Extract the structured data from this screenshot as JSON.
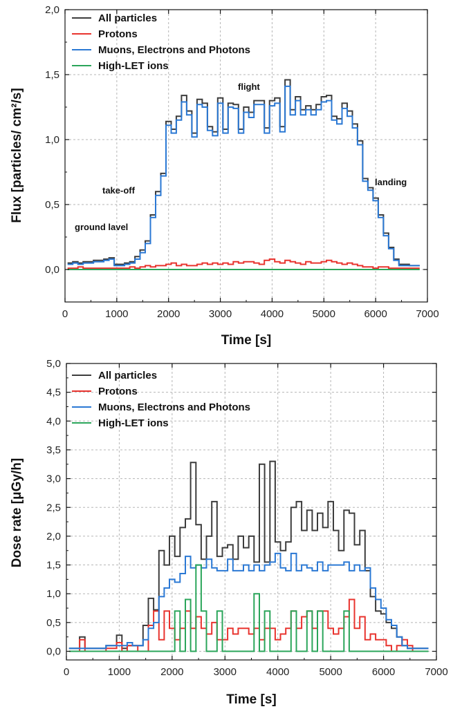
{
  "colors": {
    "all": "#3c3c3c",
    "protons": "#e8332e",
    "muons": "#2a78d4",
    "highlet": "#2aa55a",
    "grid": "#b5b5b5"
  },
  "chart_data": [
    {
      "type": "line",
      "xlabel": "Time [s]",
      "ylabel": "Flux [particles/ cm²/s]",
      "xlim": [
        0,
        7000
      ],
      "ylim": [
        -0.25,
        2.0
      ],
      "xticks": [
        "0",
        "1000",
        "2000",
        "3000",
        "4000",
        "5000",
        "6000",
        "7000"
      ],
      "yticks": [
        "0,0",
        "0,5",
        "1,0",
        "1,5",
        "2,0"
      ],
      "grid": true,
      "legend_position": "top-left",
      "annotations": [
        "ground lavel",
        "take-off",
        "flight",
        "landing"
      ],
      "x": [
        100,
        200,
        300,
        400,
        500,
        600,
        700,
        800,
        900,
        1000,
        1100,
        1200,
        1300,
        1400,
        1500,
        1600,
        1700,
        1800,
        1900,
        2000,
        2100,
        2200,
        2300,
        2400,
        2500,
        2600,
        2700,
        2800,
        2900,
        3000,
        3100,
        3200,
        3300,
        3400,
        3500,
        3600,
        3700,
        3800,
        3900,
        4000,
        4100,
        4200,
        4300,
        4400,
        4500,
        4600,
        4700,
        4800,
        4900,
        5000,
        5100,
        5200,
        5300,
        5400,
        5500,
        5600,
        5700,
        5800,
        5900,
        6000,
        6100,
        6200,
        6300,
        6400,
        6500,
        6600,
        6700,
        6800
      ],
      "series": [
        {
          "name": "All particles",
          "values": [
            0.05,
            0.06,
            0.05,
            0.06,
            0.06,
            0.07,
            0.07,
            0.08,
            0.09,
            0.04,
            0.04,
            0.05,
            0.06,
            0.1,
            0.15,
            0.22,
            0.42,
            0.6,
            0.74,
            1.14,
            1.08,
            1.18,
            1.34,
            1.22,
            1.05,
            1.31,
            1.28,
            1.1,
            1.06,
            1.32,
            1.08,
            1.28,
            1.27,
            1.08,
            1.25,
            1.21,
            1.3,
            1.3,
            1.09,
            1.3,
            1.32,
            1.1,
            1.46,
            1.23,
            1.33,
            1.23,
            1.26,
            1.23,
            1.27,
            1.33,
            1.34,
            1.18,
            1.16,
            1.28,
            1.22,
            1.12,
            0.99,
            0.7,
            0.63,
            0.55,
            0.42,
            0.28,
            0.17,
            0.08,
            0.04,
            0.04,
            0.03,
            0.03
          ]
        },
        {
          "name": "Protons",
          "values": [
            0.01,
            0.01,
            0.02,
            0.01,
            0.01,
            0.01,
            0.01,
            0.01,
            0.01,
            0.01,
            0.01,
            0.01,
            0.02,
            0.01,
            0.02,
            0.03,
            0.02,
            0.03,
            0.03,
            0.04,
            0.05,
            0.03,
            0.04,
            0.03,
            0.03,
            0.04,
            0.05,
            0.04,
            0.05,
            0.04,
            0.05,
            0.04,
            0.06,
            0.05,
            0.06,
            0.06,
            0.05,
            0.04,
            0.07,
            0.08,
            0.06,
            0.05,
            0.07,
            0.06,
            0.05,
            0.04,
            0.06,
            0.05,
            0.05,
            0.06,
            0.07,
            0.06,
            0.05,
            0.04,
            0.05,
            0.04,
            0.03,
            0.02,
            0.02,
            0.01,
            0.02,
            0.02,
            0.01,
            0.01,
            0.01,
            0.01,
            0.01,
            0.01
          ]
        },
        {
          "name": "Muons, Electrons and Photons",
          "values": [
            0.04,
            0.05,
            0.04,
            0.05,
            0.05,
            0.06,
            0.06,
            0.07,
            0.08,
            0.03,
            0.03,
            0.04,
            0.05,
            0.08,
            0.13,
            0.2,
            0.4,
            0.57,
            0.72,
            1.11,
            1.05,
            1.15,
            1.29,
            1.19,
            1.02,
            1.27,
            1.25,
            1.07,
            1.03,
            1.28,
            1.05,
            1.25,
            1.24,
            1.05,
            1.21,
            1.17,
            1.27,
            1.27,
            1.05,
            1.26,
            1.28,
            1.06,
            1.41,
            1.19,
            1.3,
            1.19,
            1.23,
            1.19,
            1.23,
            1.29,
            1.3,
            1.15,
            1.12,
            1.24,
            1.18,
            1.09,
            0.96,
            0.68,
            0.61,
            0.53,
            0.4,
            0.26,
            0.16,
            0.07,
            0.03,
            0.03,
            0.03,
            0.03
          ]
        },
        {
          "name": "High-LET ions",
          "values": [
            0.0,
            0.0,
            0.0,
            0.0,
            0.0,
            0.0,
            0.0,
            0.0,
            0.0,
            0.0,
            0.0,
            0.0,
            0.0,
            0.0,
            0.0,
            0.0,
            0.0,
            0.0,
            0.0,
            0.0,
            0.0,
            0.0,
            0.0,
            0.0,
            0.0,
            0.0,
            0.0,
            0.0,
            0.0,
            0.0,
            0.0,
            0.0,
            0.0,
            0.0,
            0.0,
            0.0,
            0.0,
            0.0,
            0.0,
            0.0,
            0.0,
            0.0,
            0.0,
            0.0,
            0.0,
            0.0,
            0.0,
            0.0,
            0.0,
            0.0,
            0.0,
            0.0,
            0.0,
            0.0,
            0.0,
            0.0,
            0.0,
            0.0,
            0.0,
            0.0,
            0.0,
            0.0,
            0.0,
            0.0,
            0.0,
            0.0,
            0.0,
            0.0
          ]
        }
      ]
    },
    {
      "type": "line",
      "xlabel": "Time [s]",
      "ylabel": "Dose rate [μGy/h]",
      "xlim": [
        0,
        7000
      ],
      "ylim": [
        -0.15,
        5.0
      ],
      "xticks": [
        "0",
        "1000",
        "2000",
        "3000",
        "4000",
        "5000",
        "6000",
        "7000"
      ],
      "yticks": [
        "0,0",
        "0,5",
        "1,0",
        "1,5",
        "2,0",
        "2,5",
        "3,0",
        "3,5",
        "4,0",
        "4,5",
        "5,0"
      ],
      "grid": true,
      "legend_position": "top-left",
      "x": [
        100,
        200,
        300,
        400,
        500,
        600,
        700,
        800,
        900,
        1000,
        1100,
        1200,
        1300,
        1400,
        1500,
        1600,
        1700,
        1800,
        1900,
        2000,
        2100,
        2200,
        2300,
        2400,
        2500,
        2600,
        2700,
        2800,
        2900,
        3000,
        3100,
        3200,
        3300,
        3400,
        3500,
        3600,
        3700,
        3800,
        3900,
        4000,
        4100,
        4200,
        4300,
        4400,
        4500,
        4600,
        4700,
        4800,
        4900,
        5000,
        5100,
        5200,
        5300,
        5400,
        5500,
        5600,
        5700,
        5800,
        5900,
        6000,
        6100,
        6200,
        6300,
        6400,
        6500,
        6600,
        6700,
        6800
      ],
      "series": [
        {
          "name": "All particles",
          "values": [
            0.05,
            0.05,
            0.25,
            0.05,
            0.05,
            0.05,
            0.05,
            0.1,
            0.1,
            0.28,
            0.05,
            0.1,
            0.1,
            0.1,
            0.45,
            0.92,
            0.72,
            1.75,
            1.5,
            2.0,
            1.65,
            2.15,
            2.3,
            3.28,
            2.2,
            1.6,
            2.0,
            2.6,
            1.65,
            1.8,
            1.85,
            1.6,
            2.0,
            1.8,
            2.0,
            1.55,
            3.25,
            1.55,
            3.3,
            1.9,
            1.75,
            1.9,
            2.5,
            2.6,
            2.1,
            2.45,
            2.1,
            2.4,
            2.15,
            2.6,
            2.1,
            1.75,
            2.45,
            2.4,
            1.85,
            2.1,
            1.4,
            0.95,
            0.7,
            0.65,
            0.5,
            0.4,
            0.25,
            0.1,
            0.05,
            0.05,
            0.05,
            0.05
          ]
        },
        {
          "name": "Protons",
          "values": [
            0.0,
            0.0,
            0.2,
            0.0,
            0.0,
            0.0,
            0.0,
            0.05,
            0.05,
            0.15,
            0.0,
            0.1,
            0.1,
            0.0,
            0.0,
            0.45,
            0.7,
            0.2,
            0.7,
            0.4,
            0.2,
            0.4,
            0.7,
            0.4,
            0.6,
            0.4,
            0.3,
            0.5,
            0.2,
            0.2,
            0.4,
            0.3,
            0.4,
            0.4,
            0.3,
            0.4,
            0.2,
            0.4,
            0.4,
            0.2,
            0.3,
            0.4,
            0.7,
            0.4,
            0.6,
            0.7,
            0.4,
            0.7,
            0.7,
            0.4,
            0.3,
            0.4,
            0.6,
            0.9,
            0.4,
            0.6,
            0.2,
            0.3,
            0.2,
            0.2,
            0.1,
            0.0,
            0.1,
            0.2,
            0.1,
            0.0,
            0.0,
            0.0
          ]
        },
        {
          "name": "Muons, Electrons and Photons",
          "values": [
            0.05,
            0.05,
            0.05,
            0.05,
            0.05,
            0.05,
            0.05,
            0.1,
            0.1,
            0.1,
            0.1,
            0.15,
            0.1,
            0.1,
            0.2,
            0.4,
            0.5,
            0.95,
            1.1,
            1.25,
            1.2,
            1.35,
            1.65,
            1.45,
            1.5,
            1.45,
            1.6,
            1.45,
            1.4,
            1.4,
            1.6,
            1.4,
            1.4,
            1.5,
            1.4,
            1.5,
            1.4,
            1.5,
            1.55,
            1.7,
            1.45,
            1.4,
            1.7,
            1.4,
            1.5,
            1.45,
            1.4,
            1.55,
            1.4,
            1.5,
            1.5,
            1.5,
            1.55,
            1.4,
            1.5,
            1.4,
            1.45,
            1.1,
            0.9,
            0.75,
            0.55,
            0.45,
            0.25,
            0.1,
            0.05,
            0.05,
            0.05,
            0.05
          ]
        },
        {
          "name": "High-LET ions",
          "values": [
            0.0,
            0.0,
            0.0,
            0.0,
            0.0,
            0.0,
            0.0,
            0.0,
            0.0,
            0.0,
            0.0,
            0.0,
            0.0,
            0.0,
            0.0,
            0.0,
            0.0,
            0.0,
            0.0,
            0.0,
            0.7,
            0.0,
            0.9,
            0.0,
            1.5,
            0.7,
            0.0,
            0.0,
            0.7,
            0.0,
            0.0,
            0.0,
            0.0,
            0.0,
            0.0,
            1.0,
            0.0,
            0.7,
            0.0,
            0.0,
            0.0,
            0.0,
            0.7,
            0.0,
            0.0,
            0.7,
            0.0,
            0.7,
            0.0,
            0.0,
            0.0,
            0.0,
            0.7,
            0.0,
            0.0,
            0.0,
            0.0,
            0.0,
            0.0,
            0.0,
            0.0,
            0.0,
            0.0,
            0.0,
            0.0,
            0.0,
            0.0,
            0.0
          ]
        }
      ]
    }
  ]
}
